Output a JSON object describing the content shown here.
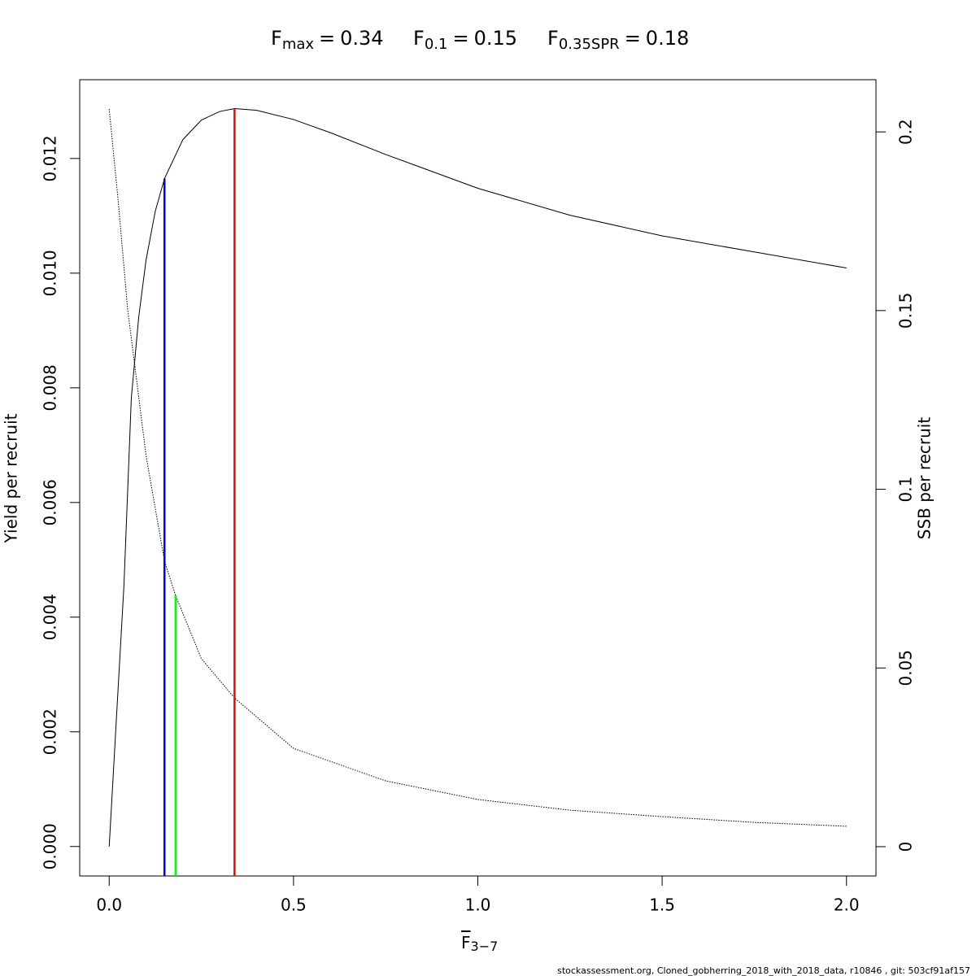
{
  "chart_data": {
    "type": "line",
    "operator": "=",
    "reference_points": [
      {
        "symbol": "F",
        "subscript": "max",
        "value": 0.34,
        "top": 0.01287,
        "top_axis": "y",
        "color": "#ff0000"
      },
      {
        "symbol": "F",
        "subscript": "0.1",
        "value": 0.15,
        "top": 0.01165,
        "top_axis": "y",
        "color": "#0000ff"
      },
      {
        "symbol": "F",
        "subscript": "0.35SPR",
        "value": 0.18,
        "top": 0.0703,
        "top_axis": "y2",
        "color": "#00ff00"
      }
    ],
    "xlabel": {
      "text": "F",
      "subscript": "3−7"
    },
    "ylabel": "Yield per recruit",
    "y2label": "SSB per recruit",
    "footer": "stockassessment.org, Cloned_gobherring_2018_with_2018_data, r10846 , git: 503cf91af157",
    "series": [
      {
        "color": "#000000",
        "line_style": "solid",
        "axis": "y",
        "x": [
          0,
          0.02,
          0.04,
          0.06,
          0.08,
          0.1,
          0.125,
          0.15,
          0.2,
          0.25,
          0.3,
          0.34,
          0.4,
          0.5,
          0.6,
          0.75,
          1.0,
          1.25,
          1.5,
          1.75,
          2.0
        ],
        "values": [
          0,
          0.00228,
          0.00455,
          0.00782,
          0.00923,
          0.01023,
          0.01108,
          0.01165,
          0.01233,
          0.01267,
          0.01282,
          0.01287,
          0.01284,
          0.01268,
          0.01245,
          0.01207,
          0.01148,
          0.01101,
          0.01065,
          0.01037,
          0.01009
        ]
      },
      {
        "color": "#000000",
        "line_style": "dotted",
        "axis": "y2",
        "x": [
          0,
          0.025,
          0.05,
          0.075,
          0.1,
          0.15,
          0.18,
          0.25,
          0.34,
          0.5,
          0.75,
          1.0,
          1.25,
          1.5,
          1.75,
          2.0
        ],
        "values": [
          0.2064,
          0.18,
          0.1504,
          0.13,
          0.1094,
          0.0799,
          0.0703,
          0.0526,
          0.0416,
          0.0275,
          0.0184,
          0.0132,
          0.0102,
          0.0084,
          0.0068,
          0.0057
        ]
      }
    ],
    "xlim": [
      -0.08,
      2.08
    ],
    "xticks": [
      {
        "value": 0,
        "label": "0.0"
      },
      0.5,
      {
        "value": 1,
        "label": "1.0"
      },
      1.5,
      {
        "value": 2,
        "label": "2.0"
      }
    ],
    "ylim": [
      -0.000514,
      0.013374
    ],
    "yticks": [
      {
        "value": 0,
        "label": "0.000"
      },
      {
        "value": 0.002,
        "label": "0.002"
      },
      {
        "value": 0.004,
        "label": "0.004"
      },
      {
        "value": 0.006,
        "label": "0.006"
      },
      {
        "value": 0.008,
        "label": "0.008"
      },
      {
        "value": 0.01,
        "label": "0.010"
      },
      {
        "value": 0.012,
        "label": "0.012"
      }
    ],
    "y2lim": [
      -0.0082,
      0.2146
    ],
    "y2ticks": [
      0,
      0.05,
      0.1,
      0.15,
      0.2
    ]
  }
}
